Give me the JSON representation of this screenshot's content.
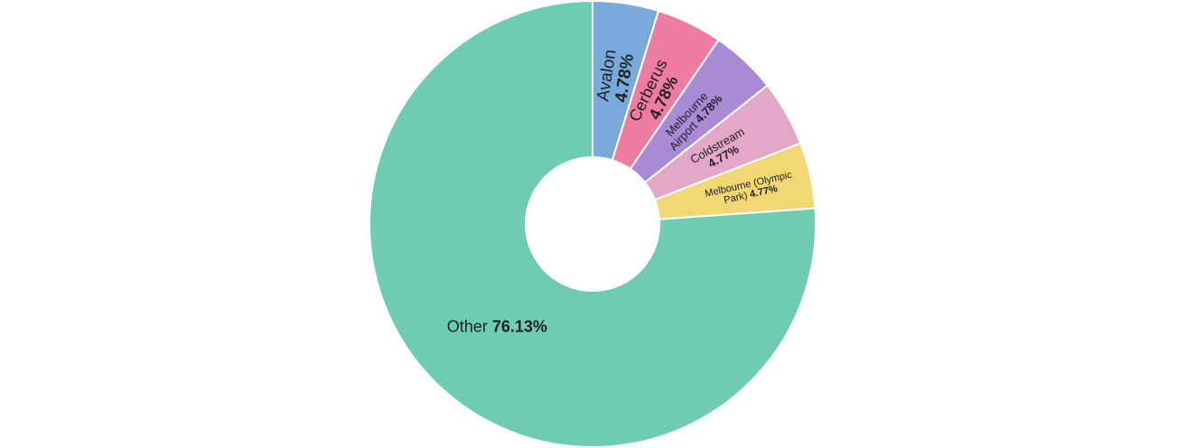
{
  "chart_data": {
    "type": "pie",
    "donut": true,
    "title": "",
    "slices": [
      {
        "name": "Avalon",
        "value": 4.78,
        "label": "4.78%",
        "color": "#7aaadc"
      },
      {
        "name": "Cerberus",
        "value": 4.78,
        "label": "4.78%",
        "color": "#f07ba0"
      },
      {
        "name": "Melbourne Airport",
        "value": 4.78,
        "label": "4.78%",
        "color": "#a98ad4"
      },
      {
        "name": "Coldstream",
        "value": 4.77,
        "label": "4.77%",
        "color": "#e3a8c8"
      },
      {
        "name": "Melbourne (Olympic Park)",
        "value": 4.77,
        "label": "4.77%",
        "color": "#f2d872"
      },
      {
        "name": "Other",
        "value": 76.13,
        "label": "76.13%",
        "color": "#6fcbb1"
      }
    ]
  }
}
